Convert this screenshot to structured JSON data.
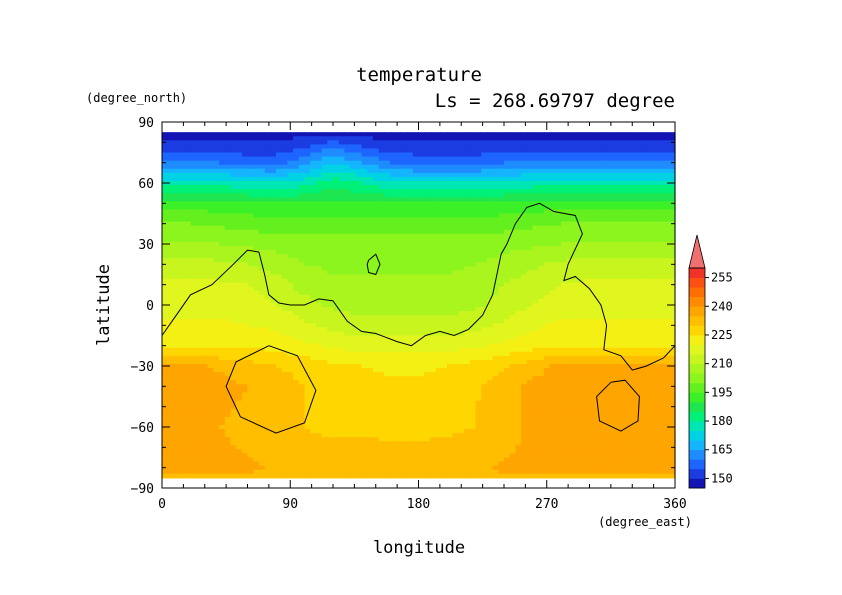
{
  "chart_data": {
    "type": "heatmap",
    "title": "temperature",
    "subtitle": "Ls = 268.69797 degree",
    "xlabel": "longitude",
    "ylabel": "latitude",
    "x_unit": "(degree_east)",
    "y_unit": "(degree_north)",
    "xlim": [
      0,
      360
    ],
    "ylim": [
      -90,
      90
    ],
    "x_ticks": [
      "0",
      "90",
      "180",
      "270",
      "360"
    ],
    "y_ticks": [
      "90",
      "60",
      "30",
      "0",
      "−30",
      "−60",
      "−90"
    ],
    "colorbar": {
      "levels": [
        145,
        150,
        155,
        160,
        165,
        170,
        175,
        180,
        185,
        190,
        195,
        200,
        205,
        210,
        215,
        220,
        225,
        230,
        235,
        240,
        245,
        250,
        255,
        260
      ],
      "colors": [
        "#1414b4",
        "#1a3ce0",
        "#1e64ff",
        "#1e8cff",
        "#14b4ff",
        "#00d2e6",
        "#00e6b4",
        "#00f078",
        "#1ee650",
        "#3cf028",
        "#64f01e",
        "#8cf51e",
        "#aaf51e",
        "#c8f51e",
        "#e1f51e",
        "#f5f014",
        "#ffd700",
        "#ffbe00",
        "#ffa500",
        "#ff8c00",
        "#ff6e00",
        "#ff5014",
        "#f03228"
      ],
      "tick_labels": [
        "255",
        "240",
        "225",
        "210",
        "195",
        "180",
        "165",
        "150"
      ],
      "overflow_color": "#f07070"
    },
    "field": {
      "lon_step": 20,
      "lat_step": 10,
      "latitudes": [
        85,
        80,
        70,
        60,
        50,
        40,
        30,
        20,
        10,
        0,
        -10,
        -20,
        -30,
        -40,
        -50,
        -60,
        -70,
        -80,
        -85
      ],
      "rows": [
        [
          148,
          148,
          148,
          148,
          148,
          148,
          148,
          148,
          148,
          148,
          148,
          148,
          148,
          148,
          148,
          148,
          148,
          148,
          148
        ],
        [
          150,
          150,
          150,
          150,
          150,
          152,
          156,
          152,
          150,
          150,
          150,
          150,
          150,
          150,
          150,
          150,
          150,
          150,
          150
        ],
        [
          160,
          160,
          160,
          158,
          158,
          163,
          170,
          165,
          160,
          158,
          158,
          158,
          160,
          160,
          160,
          160,
          160,
          160,
          160
        ],
        [
          178,
          178,
          178,
          176,
          175,
          178,
          183,
          180,
          176,
          175,
          175,
          175,
          176,
          177,
          177,
          177,
          177,
          178,
          178
        ],
        [
          192,
          192,
          192,
          191,
          190,
          190,
          191,
          191,
          190,
          190,
          190,
          190,
          191,
          192,
          192,
          192,
          192,
          192,
          192
        ],
        [
          200,
          200,
          199,
          198,
          197,
          197,
          197,
          197,
          197,
          197,
          197,
          197,
          198,
          199,
          200,
          200,
          200,
          200,
          200
        ],
        [
          205,
          205,
          205,
          204,
          203,
          202,
          202,
          202,
          202,
          202,
          202,
          202,
          203,
          204,
          205,
          205,
          205,
          205,
          205
        ],
        [
          212,
          212,
          211,
          210,
          208,
          205,
          204,
          204,
          204,
          204,
          204,
          205,
          207,
          209,
          211,
          212,
          212,
          212,
          212
        ],
        [
          216,
          216,
          216,
          215,
          212,
          208,
          206,
          206,
          206,
          206,
          206,
          207,
          210,
          212,
          215,
          216,
          216,
          216,
          216
        ],
        [
          218,
          218,
          218,
          217,
          215,
          212,
          209,
          208,
          208,
          208,
          208,
          209,
          212,
          215,
          217,
          218,
          218,
          218,
          218
        ],
        [
          221,
          221,
          221,
          220,
          219,
          216,
          213,
          212,
          212,
          212,
          212,
          213,
          216,
          219,
          221,
          221,
          221,
          221,
          221
        ],
        [
          224,
          224,
          224,
          224,
          223,
          221,
          219,
          218,
          218,
          218,
          218,
          219,
          221,
          223,
          224,
          224,
          224,
          224,
          224
        ],
        [
          236,
          236,
          234,
          232,
          230,
          228,
          226,
          225,
          224,
          224,
          225,
          227,
          229,
          233,
          236,
          237,
          237,
          236,
          236
        ],
        [
          238,
          238,
          237,
          235,
          233,
          230,
          228,
          227,
          226,
          226,
          227,
          229,
          233,
          236,
          238,
          239,
          239,
          238,
          238
        ],
        [
          237,
          237,
          236,
          234,
          232,
          230,
          229,
          228,
          227,
          227,
          228,
          230,
          233,
          236,
          238,
          239,
          239,
          238,
          237
        ],
        [
          236,
          236,
          235,
          233,
          231,
          230,
          229,
          229,
          228,
          228,
          229,
          230,
          233,
          236,
          237,
          238,
          238,
          237,
          236
        ],
        [
          237,
          237,
          236,
          234,
          232,
          231,
          231,
          231,
          231,
          231,
          231,
          232,
          234,
          236,
          237,
          237,
          237,
          237,
          237
        ],
        [
          238,
          238,
          238,
          236,
          234,
          233,
          233,
          233,
          233,
          233,
          233,
          233,
          236,
          237,
          238,
          238,
          238,
          238,
          238
        ],
        [
          234,
          234,
          234,
          234,
          234,
          234,
          234,
          234,
          234,
          234,
          234,
          234,
          234,
          234,
          234,
          234,
          234,
          234,
          234
        ]
      ]
    },
    "contours": [
      [
        [
          0,
          -15
        ],
        [
          10,
          -5
        ],
        [
          20,
          5
        ],
        [
          35,
          10
        ],
        [
          50,
          20
        ],
        [
          60,
          27
        ],
        [
          68,
          26
        ],
        [
          72,
          15
        ],
        [
          75,
          5
        ],
        [
          82,
          1
        ],
        [
          90,
          0
        ],
        [
          100,
          0
        ],
        [
          110,
          3
        ],
        [
          120,
          2
        ],
        [
          130,
          -8
        ],
        [
          140,
          -13
        ],
        [
          150,
          -14
        ],
        [
          165,
          -18
        ],
        [
          175,
          -20
        ],
        [
          185,
          -15
        ],
        [
          195,
          -13
        ],
        [
          205,
          -15
        ],
        [
          215,
          -12
        ],
        [
          225,
          -5
        ],
        [
          232,
          5
        ],
        [
          235,
          15
        ],
        [
          238,
          25
        ],
        [
          242,
          30
        ],
        [
          248,
          40
        ],
        [
          256,
          48
        ],
        [
          265,
          50
        ],
        [
          275,
          46
        ],
        [
          290,
          44
        ],
        [
          295,
          35
        ],
        [
          285,
          20
        ],
        [
          282,
          12
        ],
        [
          290,
          14
        ],
        [
          300,
          8
        ],
        [
          308,
          0
        ],
        [
          312,
          -10
        ],
        [
          310,
          -22
        ],
        [
          322,
          -25
        ],
        [
          330,
          -32
        ],
        [
          340,
          -30
        ],
        [
          352,
          -26
        ],
        [
          360,
          -20
        ]
      ],
      [
        [
          145,
          22
        ],
        [
          150,
          25
        ],
        [
          153,
          20
        ],
        [
          150,
          15
        ],
        [
          145,
          16
        ],
        [
          144,
          20
        ],
        [
          145,
          22
        ]
      ],
      [
        [
          75,
          -20
        ],
        [
          95,
          -25
        ],
        [
          108,
          -42
        ],
        [
          100,
          -58
        ],
        [
          80,
          -63
        ],
        [
          55,
          -55
        ],
        [
          45,
          -40
        ],
        [
          52,
          -28
        ],
        [
          75,
          -20
        ]
      ],
      [
        [
          315,
          -38
        ],
        [
          325,
          -37
        ],
        [
          335,
          -45
        ],
        [
          334,
          -57
        ],
        [
          322,
          -62
        ],
        [
          307,
          -57
        ],
        [
          305,
          -45
        ],
        [
          315,
          -38
        ]
      ]
    ]
  }
}
